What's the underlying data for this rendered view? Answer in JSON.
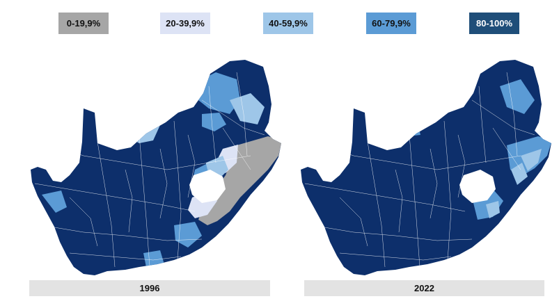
{
  "legend": [
    {
      "label": "0-19,9%",
      "color": "#a6a6a6",
      "text_color": "#111111"
    },
    {
      "label": "20-39,9%",
      "color": "#dde3f5",
      "text_color": "#111111"
    },
    {
      "label": "40-59,9%",
      "color": "#9ec6e8",
      "text_color": "#111111"
    },
    {
      "label": "60-79,9%",
      "color": "#5b9bd5",
      "text_color": "#111111"
    },
    {
      "label": "80-100%",
      "color": "#1f4e79",
      "text_color": "#ffffff"
    }
  ],
  "maps": [
    {
      "year": "1996"
    },
    {
      "year": "2022"
    }
  ],
  "base_color": "#0d2f6b"
}
